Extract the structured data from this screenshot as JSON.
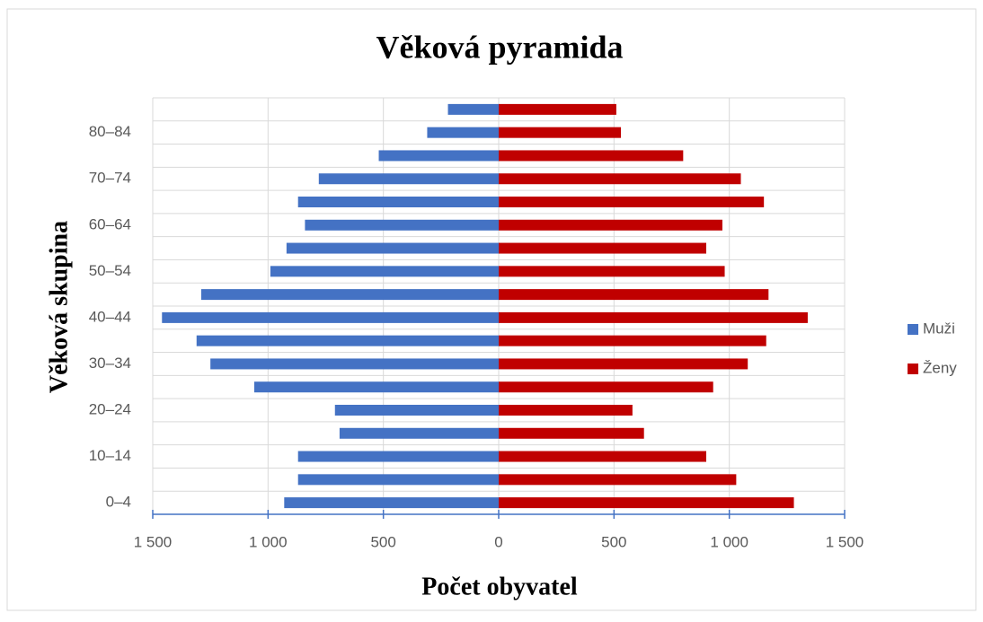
{
  "chart_data": {
    "type": "bar",
    "orientation": "horizontal",
    "stacked": true,
    "title": "Věková pyramida",
    "xlabel": "Počet obyvatel",
    "ylabel": "Věková skupina",
    "categories": [
      "0–4",
      null,
      "10–14",
      null,
      "20–24",
      null,
      "30–34",
      null,
      "40–44",
      null,
      "50–54",
      null,
      "60–64",
      null,
      "70–74",
      null,
      "80–84",
      null
    ],
    "series": [
      {
        "name": "Muži",
        "color": "#4472c4",
        "values": [
          -930,
          -870,
          -870,
          -690,
          -710,
          -1060,
          -1250,
          -1310,
          -1460,
          -1290,
          -990,
          -920,
          -840,
          -870,
          -780,
          -520,
          -310,
          -220
        ]
      },
      {
        "name": "Ženy",
        "color": "#c00000",
        "values": [
          1280,
          1030,
          900,
          630,
          580,
          930,
          1080,
          1160,
          1340,
          1170,
          980,
          900,
          970,
          1150,
          1050,
          800,
          530,
          510
        ]
      }
    ],
    "xlim": [
      -1500,
      1500
    ],
    "xticks": [
      {
        "value": -1500,
        "label": "1 500"
      },
      {
        "value": -1000,
        "label": "1 000"
      },
      {
        "value": -500,
        "label": "500"
      },
      0,
      500,
      {
        "value": 1000,
        "label": "1 000"
      },
      {
        "value": 1500,
        "label": "1 500"
      }
    ],
    "grid": true,
    "legend": "right"
  }
}
